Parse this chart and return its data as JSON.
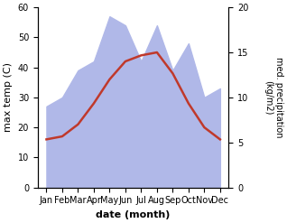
{
  "months": [
    "Jan",
    "Feb",
    "Mar",
    "Apr",
    "May",
    "Jun",
    "Jul",
    "Aug",
    "Sep",
    "Oct",
    "Nov",
    "Dec"
  ],
  "temp": [
    16,
    17,
    21,
    28,
    36,
    42,
    44,
    45,
    38,
    28,
    20,
    16
  ],
  "precip": [
    9,
    10,
    13,
    14,
    19,
    18,
    14,
    18,
    13,
    16,
    10,
    11
  ],
  "temp_color": "#c0392b",
  "precip_fill_color": "#b0b8e8",
  "temp_ylim": [
    0,
    60
  ],
  "precip_ylim": [
    0,
    20
  ],
  "temp_yticks": [
    0,
    10,
    20,
    30,
    40,
    50,
    60
  ],
  "precip_yticks": [
    0,
    5,
    10,
    15,
    20
  ],
  "xlabel": "date (month)",
  "ylabel_left": "max temp (C)",
  "ylabel_right": "med. precipitation\n(kg/m2)",
  "background_color": "#ffffff"
}
